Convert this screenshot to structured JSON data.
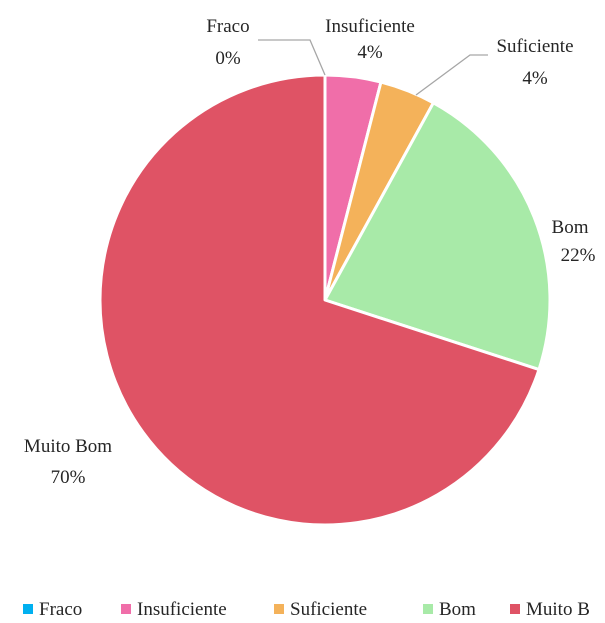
{
  "chart_data": {
    "type": "pie",
    "title": "",
    "categories": [
      "Fraco",
      "Insuficiente",
      "Suficiente",
      "Bom",
      "Muito Bom"
    ],
    "values": [
      0,
      4,
      4,
      22,
      70
    ],
    "data_labels": [
      "0%",
      "4%",
      "4%",
      "22%",
      "70%"
    ],
    "legend_labels": [
      "Fraco",
      "Insuficiente",
      "Suficiente",
      "Bom",
      "Muito B"
    ],
    "colors": [
      "#00b0f0",
      "#f06ea9",
      "#f4b25a",
      "#a8eaa8",
      "#df5365"
    ],
    "legend_position": "bottom",
    "start_angle_deg": 0,
    "direction": "clockwise"
  }
}
